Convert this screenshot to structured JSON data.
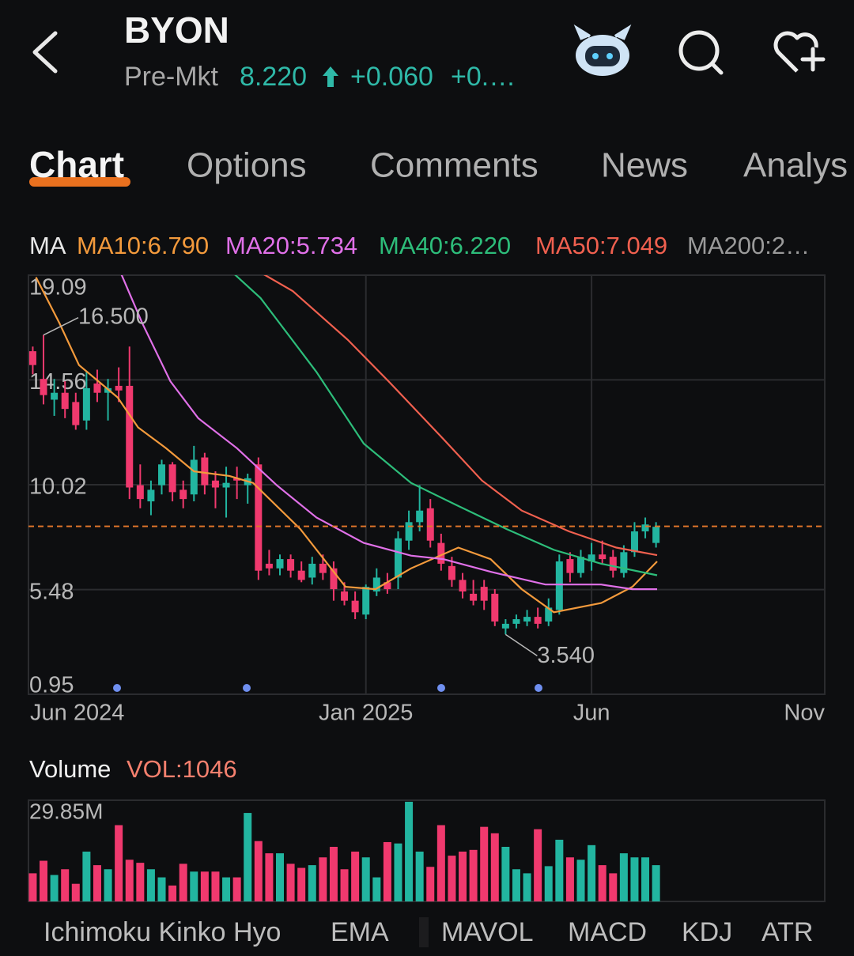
{
  "header": {
    "title": "BYON",
    "session": "Pre-Mkt",
    "price": "8.220",
    "change": "+0.060",
    "change_pct": "+0.…"
  },
  "tabs": [
    "Chart",
    "Options",
    "Comments",
    "News",
    "Analys"
  ],
  "ma_legend": [
    {
      "text": "MA",
      "color": "#e8e8e8"
    },
    {
      "text": "MA10:6.790",
      "color": "#f39a3c"
    },
    {
      "text": "MA20:5.734",
      "color": "#e070e8"
    },
    {
      "text": "MA40:6.220",
      "color": "#2dbd7a"
    },
    {
      "text": "MA50:7.049",
      "color": "#f0604f"
    },
    {
      "text": "MA200:2…",
      "color": "#9a9a9a"
    }
  ],
  "chart_data": {
    "type": "candlestick",
    "up_color": "#22b5a0",
    "down_color": "#f0396e",
    "candles": [
      [
        15.8,
        16.0,
        14.8,
        15.2
      ],
      [
        14.6,
        16.5,
        13.5,
        13.9
      ],
      [
        13.7,
        14.6,
        13.0,
        14.0
      ],
      [
        14.0,
        14.5,
        12.9,
        13.3
      ],
      [
        13.6,
        14.0,
        12.4,
        12.6
      ],
      [
        12.8,
        14.9,
        12.4,
        14.2
      ],
      [
        14.4,
        15.0,
        13.6,
        14.0
      ],
      [
        14.0,
        14.6,
        12.8,
        14.2
      ],
      [
        14.3,
        15.1,
        13.6,
        14.1
      ],
      [
        14.3,
        16.0,
        9.4,
        9.9
      ],
      [
        10.0,
        10.9,
        9.0,
        9.4
      ],
      [
        9.3,
        10.2,
        8.7,
        9.8
      ],
      [
        10.0,
        11.1,
        9.6,
        10.9
      ],
      [
        10.9,
        11.0,
        9.3,
        9.7
      ],
      [
        9.8,
        10.2,
        9.0,
        9.4
      ],
      [
        9.6,
        11.7,
        9.3,
        11.1
      ],
      [
        11.2,
        11.4,
        9.6,
        10.0
      ],
      [
        10.2,
        10.6,
        9.0,
        9.9
      ],
      [
        9.9,
        10.8,
        8.6,
        10.1
      ],
      [
        10.3,
        10.8,
        9.4,
        10.2
      ],
      [
        10.0,
        10.5,
        9.2,
        10.3
      ],
      [
        10.9,
        11.2,
        5.9,
        6.3
      ],
      [
        6.6,
        7.2,
        6.1,
        6.4
      ],
      [
        6.4,
        7.0,
        6.1,
        6.8
      ],
      [
        6.8,
        7.0,
        6.0,
        6.3
      ],
      [
        6.3,
        6.7,
        5.8,
        5.9
      ],
      [
        6.0,
        6.9,
        5.7,
        6.6
      ],
      [
        6.6,
        7.0,
        5.9,
        6.2
      ],
      [
        6.4,
        6.7,
        5.0,
        5.5
      ],
      [
        5.4,
        5.8,
        4.8,
        5.0
      ],
      [
        5.0,
        5.4,
        4.2,
        4.5
      ],
      [
        4.4,
        5.7,
        4.2,
        5.6
      ],
      [
        5.4,
        6.4,
        5.2,
        6.0
      ],
      [
        5.8,
        6.2,
        5.3,
        5.5
      ],
      [
        6.0,
        8.0,
        5.5,
        7.7
      ],
      [
        7.6,
        8.9,
        7.2,
        8.4
      ],
      [
        8.4,
        10.0,
        8.0,
        8.9
      ],
      [
        9.0,
        9.4,
        7.3,
        7.6
      ],
      [
        7.5,
        7.9,
        6.3,
        6.6
      ],
      [
        6.5,
        6.9,
        5.6,
        5.9
      ],
      [
        5.9,
        6.2,
        5.1,
        5.4
      ],
      [
        5.3,
        5.9,
        4.8,
        5.0
      ],
      [
        5.6,
        5.9,
        4.6,
        5.0
      ],
      [
        5.3,
        5.5,
        3.9,
        4.1
      ],
      [
        3.8,
        4.2,
        3.54,
        4.0
      ],
      [
        4.0,
        4.4,
        3.8,
        4.2
      ],
      [
        4.1,
        4.6,
        3.9,
        4.3
      ],
      [
        4.3,
        4.7,
        3.8,
        4.0
      ],
      [
        4.1,
        5.1,
        3.9,
        4.7
      ],
      [
        4.6,
        7.0,
        4.4,
        6.7
      ],
      [
        6.8,
        7.1,
        5.8,
        6.2
      ],
      [
        6.2,
        7.2,
        6.0,
        6.9
      ],
      [
        6.7,
        7.5,
        6.3,
        7.0
      ],
      [
        7.0,
        7.6,
        6.6,
        6.8
      ],
      [
        6.9,
        7.2,
        6.0,
        6.3
      ],
      [
        6.2,
        7.4,
        6.0,
        7.1
      ],
      [
        7.1,
        8.4,
        6.9,
        8.0
      ],
      [
        8.0,
        8.6,
        7.7,
        8.3
      ],
      [
        7.5,
        8.4,
        7.3,
        8.2
      ]
    ],
    "series": [
      {
        "color": "#f39a3c",
        "x": [
          0.3,
          2.5,
          4.3,
          7.9,
          9.8,
          12.4,
          15.0,
          18.3,
          20.5,
          24.9,
          29.1,
          31.9,
          35.2,
          39.6,
          42.6,
          45.5,
          48.5,
          52.9,
          55.8,
          58.1
        ],
        "values": [
          19.0,
          17.0,
          15.2,
          13.8,
          12.5,
          11.6,
          10.6,
          10.4,
          10.1,
          8.1,
          5.6,
          5.5,
          6.4,
          7.3,
          6.8,
          5.5,
          4.5,
          4.9,
          5.6,
          6.7
        ]
      },
      {
        "color": "#e070e8",
        "x": [
          7.9,
          10.2,
          12.8,
          15.4,
          19.0,
          22.7,
          26.4,
          30.8,
          35.2,
          38.2,
          42.6,
          47.7,
          52.9,
          55.8,
          58.1
        ],
        "values": [
          19.5,
          17.0,
          14.5,
          12.9,
          11.6,
          10.0,
          8.6,
          7.5,
          6.95,
          6.8,
          6.25,
          5.7,
          5.7,
          5.5,
          5.5
        ]
      },
      {
        "color": "#2dbd7a",
        "x": [
          17.9,
          21.2,
          26.4,
          30.8,
          35.2,
          39.6,
          44.1,
          48.5,
          52.9,
          58.1
        ],
        "values": [
          19.5,
          18.1,
          14.9,
          11.8,
          10.1,
          9.1,
          8.1,
          7.2,
          6.6,
          6.1
        ]
      },
      {
        "color": "#f0604f",
        "x": [
          20.1,
          24.2,
          29.3,
          33.1,
          38.2,
          41.8,
          45.5,
          49.9,
          54.3,
          58.1
        ],
        "values": [
          19.5,
          18.4,
          16.3,
          14.5,
          12.0,
          10.2,
          8.9,
          8.0,
          7.3,
          6.97
        ]
      }
    ],
    "price_line": 8.22,
    "price_line_color": "#e0762a",
    "annotations": [
      "16.500",
      "3.540"
    ],
    "ylim": [
      0.95,
      19.09
    ],
    "yticks": [
      19.09,
      14.56,
      10.02,
      5.48,
      0.95
    ],
    "xlim": [
      -0.4,
      73.7
    ],
    "xticks": [
      {
        "value": -0.4,
        "label": "Jun 2024"
      },
      {
        "value": 31,
        "label": "Jan 2025"
      },
      {
        "value": 52,
        "label": "Jun"
      },
      {
        "value": 73.7,
        "label": "Nov"
      }
    ],
    "grid": true
  },
  "volume": {
    "type": "bar",
    "title": "Volume",
    "label": "VOL:1046",
    "values": [
      8.3,
      12,
      7.8,
      9.5,
      5.2,
      14.7,
      10.7,
      9.5,
      22.5,
      12.3,
      11.4,
      9.5,
      7.1,
      4.7,
      11.1,
      8.8,
      8.8,
      8.8,
      7.1,
      7.1,
      26.1,
      17.8,
      14.2,
      14.2,
      11.1,
      9.9,
      10.7,
      13.0,
      16.1,
      9.5,
      14.7,
      13.0,
      7.1,
      17.5,
      17.1,
      29.4,
      14.7,
      10.2,
      22.5,
      13.5,
      14.7,
      15.2,
      22.0,
      20.1,
      16.1,
      9.5,
      8.3,
      21.3,
      10.4,
      18.2,
      13.0,
      12.3,
      16.6,
      10.7,
      8.3,
      14.2,
      13.0,
      13.0,
      10.7
    ],
    "ylim": [
      0,
      29.85
    ],
    "yticks": [
      {
        "value": 29.85,
        "label": "29.85M"
      }
    ]
  },
  "indicator_tabs": [
    "Ichimoku Kinko Hyo",
    "EMA",
    "MAVOL",
    "MACD",
    "KDJ",
    "ATR"
  ]
}
